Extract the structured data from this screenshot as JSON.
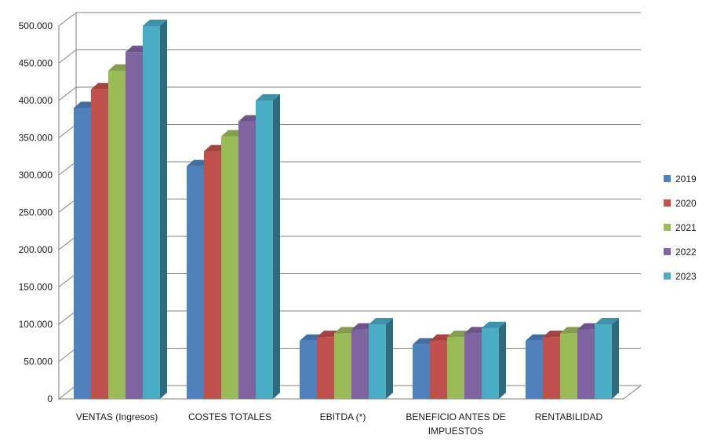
{
  "chart_data": {
    "type": "bar",
    "title": "",
    "xlabel": "",
    "ylabel": "",
    "categories": [
      "VENTAS (Ingresos)",
      "COSTES TOTALES",
      "EBITDA (*)",
      "BENEFICIO ANTES DE IMPUESTOS",
      "RENTABILIDAD"
    ],
    "category_lines": [
      [
        "VENTAS (Ingresos)"
      ],
      [
        "COSTES TOTALES"
      ],
      [
        "EBITDA (*)"
      ],
      [
        "BENEFICIO ANTES DE",
        "IMPUESTOS"
      ],
      [
        "RENTABILIDAD"
      ]
    ],
    "series": [
      {
        "name": "2019",
        "color": "#4F81BD",
        "values": [
          390000,
          312000,
          78000,
          73000,
          78000
        ]
      },
      {
        "name": "2020",
        "color": "#C0504D",
        "values": [
          415000,
          332000,
          83000,
          78000,
          83000
        ]
      },
      {
        "name": "2021",
        "color": "#9BBB59",
        "values": [
          440000,
          352000,
          88000,
          83000,
          88000
        ]
      },
      {
        "name": "2022",
        "color": "#8064A2",
        "values": [
          465000,
          372000,
          93000,
          88000,
          93000
        ]
      },
      {
        "name": "2023",
        "color": "#4BACC6",
        "values": [
          500000,
          400000,
          100000,
          95000,
          100000
        ]
      }
    ],
    "ylim": [
      0,
      500000
    ],
    "yticks": [
      "0",
      "50.000",
      "100.000",
      "150.000",
      "200.000",
      "250.000",
      "300.000",
      "350.000",
      "400.000",
      "450.000",
      "500.000"
    ],
    "grid": true,
    "legend_position": "right"
  }
}
